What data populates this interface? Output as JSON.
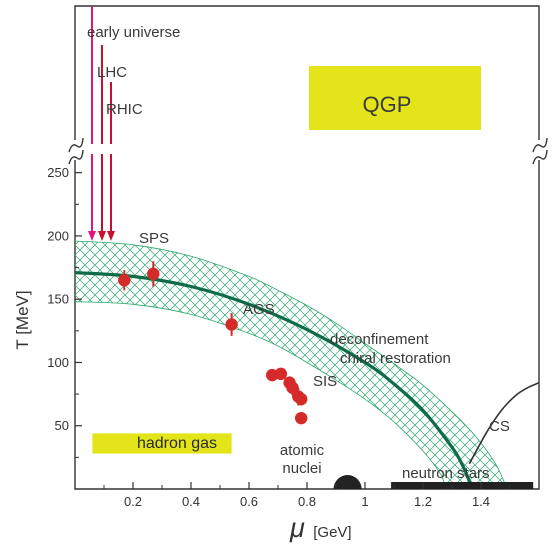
{
  "chart_data": {
    "type": "scatter",
    "title": "",
    "xlabel": "μ",
    "xlabel_unit": "[GeV]",
    "ylabel": "T  [MeV]",
    "xlim": [
      0,
      1.6
    ],
    "ylim": [
      0,
      260
    ],
    "x_ticks": [
      0.2,
      0.4,
      0.6,
      0.8,
      1,
      1.2,
      1.4
    ],
    "x_tick_labels": [
      "0.2",
      "0.4",
      "0.6",
      "0.8",
      "1",
      "1.2",
      "1.4"
    ],
    "y_ticks": [
      50,
      100,
      150,
      200,
      250
    ],
    "y_tick_labels": [
      "50",
      "100",
      "150",
      "200",
      "250"
    ],
    "y_axis_break": true,
    "colors": {
      "points": "#d42a2a",
      "phase_boundary": "#0f6b45",
      "band_hatch": "#2aa86a",
      "box_fill": "#e3e51a",
      "early_universe_arrow": "#e0167a",
      "collider_arrows": "#c8102e",
      "cs_curve": "#333333",
      "dark": "#222222"
    },
    "series": [
      {
        "points": [
          {
            "x": 0.17,
            "y": 165,
            "err": 8
          },
          {
            "x": 0.27,
            "y": 170,
            "err": 10
          },
          {
            "x": 0.54,
            "y": 130,
            "err": 9
          },
          {
            "x": 0.68,
            "y": 90,
            "err": 4
          },
          {
            "x": 0.71,
            "y": 91,
            "err": 4
          },
          {
            "x": 0.74,
            "y": 84,
            "err": 5
          },
          {
            "x": 0.75,
            "y": 80,
            "err": 6
          },
          {
            "x": 0.77,
            "y": 73,
            "err": 7
          },
          {
            "x": 0.78,
            "y": 71,
            "err": 5
          },
          {
            "x": 0.78,
            "y": 56,
            "err": 3
          }
        ]
      }
    ],
    "phase_boundary": [
      {
        "x": 0,
        "y": 171
      },
      {
        "x": 0.2,
        "y": 168
      },
      {
        "x": 0.4,
        "y": 160
      },
      {
        "x": 0.6,
        "y": 146
      },
      {
        "x": 0.8,
        "y": 126
      },
      {
        "x": 1.0,
        "y": 100
      },
      {
        "x": 1.1,
        "y": 83
      },
      {
        "x": 1.2,
        "y": 62
      },
      {
        "x": 1.3,
        "y": 33
      },
      {
        "x": 1.34,
        "y": 17
      },
      {
        "x": 1.37,
        "y": 0
      }
    ],
    "band_upper": [
      {
        "x": 0,
        "y": 196
      },
      {
        "x": 0.2,
        "y": 193
      },
      {
        "x": 0.4,
        "y": 184
      },
      {
        "x": 0.6,
        "y": 168
      },
      {
        "x": 0.7,
        "y": 157
      },
      {
        "x": 0.8,
        "y": 145
      },
      {
        "x": 0.9,
        "y": 131
      },
      {
        "x": 1.0,
        "y": 115
      },
      {
        "x": 1.1,
        "y": 99
      },
      {
        "x": 1.2,
        "y": 82
      },
      {
        "x": 1.3,
        "y": 61
      },
      {
        "x": 1.38,
        "y": 42
      },
      {
        "x": 1.45,
        "y": 20
      },
      {
        "x": 1.49,
        "y": 0
      }
    ],
    "band_lower": [
      {
        "x": 0,
        "y": 148
      },
      {
        "x": 0.2,
        "y": 146
      },
      {
        "x": 0.4,
        "y": 138
      },
      {
        "x": 0.6,
        "y": 123
      },
      {
        "x": 0.7,
        "y": 113
      },
      {
        "x": 0.8,
        "y": 100
      },
      {
        "x": 0.9,
        "y": 86
      },
      {
        "x": 1.0,
        "y": 71
      },
      {
        "x": 1.1,
        "y": 53
      },
      {
        "x": 1.2,
        "y": 30
      },
      {
        "x": 1.26,
        "y": 12
      },
      {
        "x": 1.28,
        "y": 0
      }
    ],
    "cs_curve": [
      {
        "x": 1.36,
        "y": 20
      },
      {
        "x": 1.42,
        "y": 45
      },
      {
        "x": 1.47,
        "y": 62
      },
      {
        "x": 1.52,
        "y": 74
      },
      {
        "x": 1.56,
        "y": 80
      },
      {
        "x": 1.6,
        "y": 84
      }
    ],
    "atomic_nuclei": {
      "x": 0.94,
      "y": 0
    },
    "neutron_stars": {
      "x_start": 1.09,
      "x_end": 1.58
    },
    "hadron_gas_box": {
      "x_start": 0.06,
      "x_end": 0.54,
      "y_start": 28,
      "y_end": 44
    },
    "regions": {
      "qgp": "QGP",
      "hadron_gas": "hadron gas",
      "cs": "CS",
      "neutron_stars": "neutron stars",
      "atomic_nuclei_line1": "atomic",
      "atomic_nuclei_line2": "nuclei",
      "deconf_line1": "deconfinement",
      "deconf_line2": "chiral restoration"
    },
    "experiments": {
      "sps": "SPS",
      "ags": "AGS",
      "sis": "SIS"
    },
    "arrows": {
      "early_universe": "early universe",
      "lhc": "LHC",
      "rhic": "RHIC"
    }
  }
}
